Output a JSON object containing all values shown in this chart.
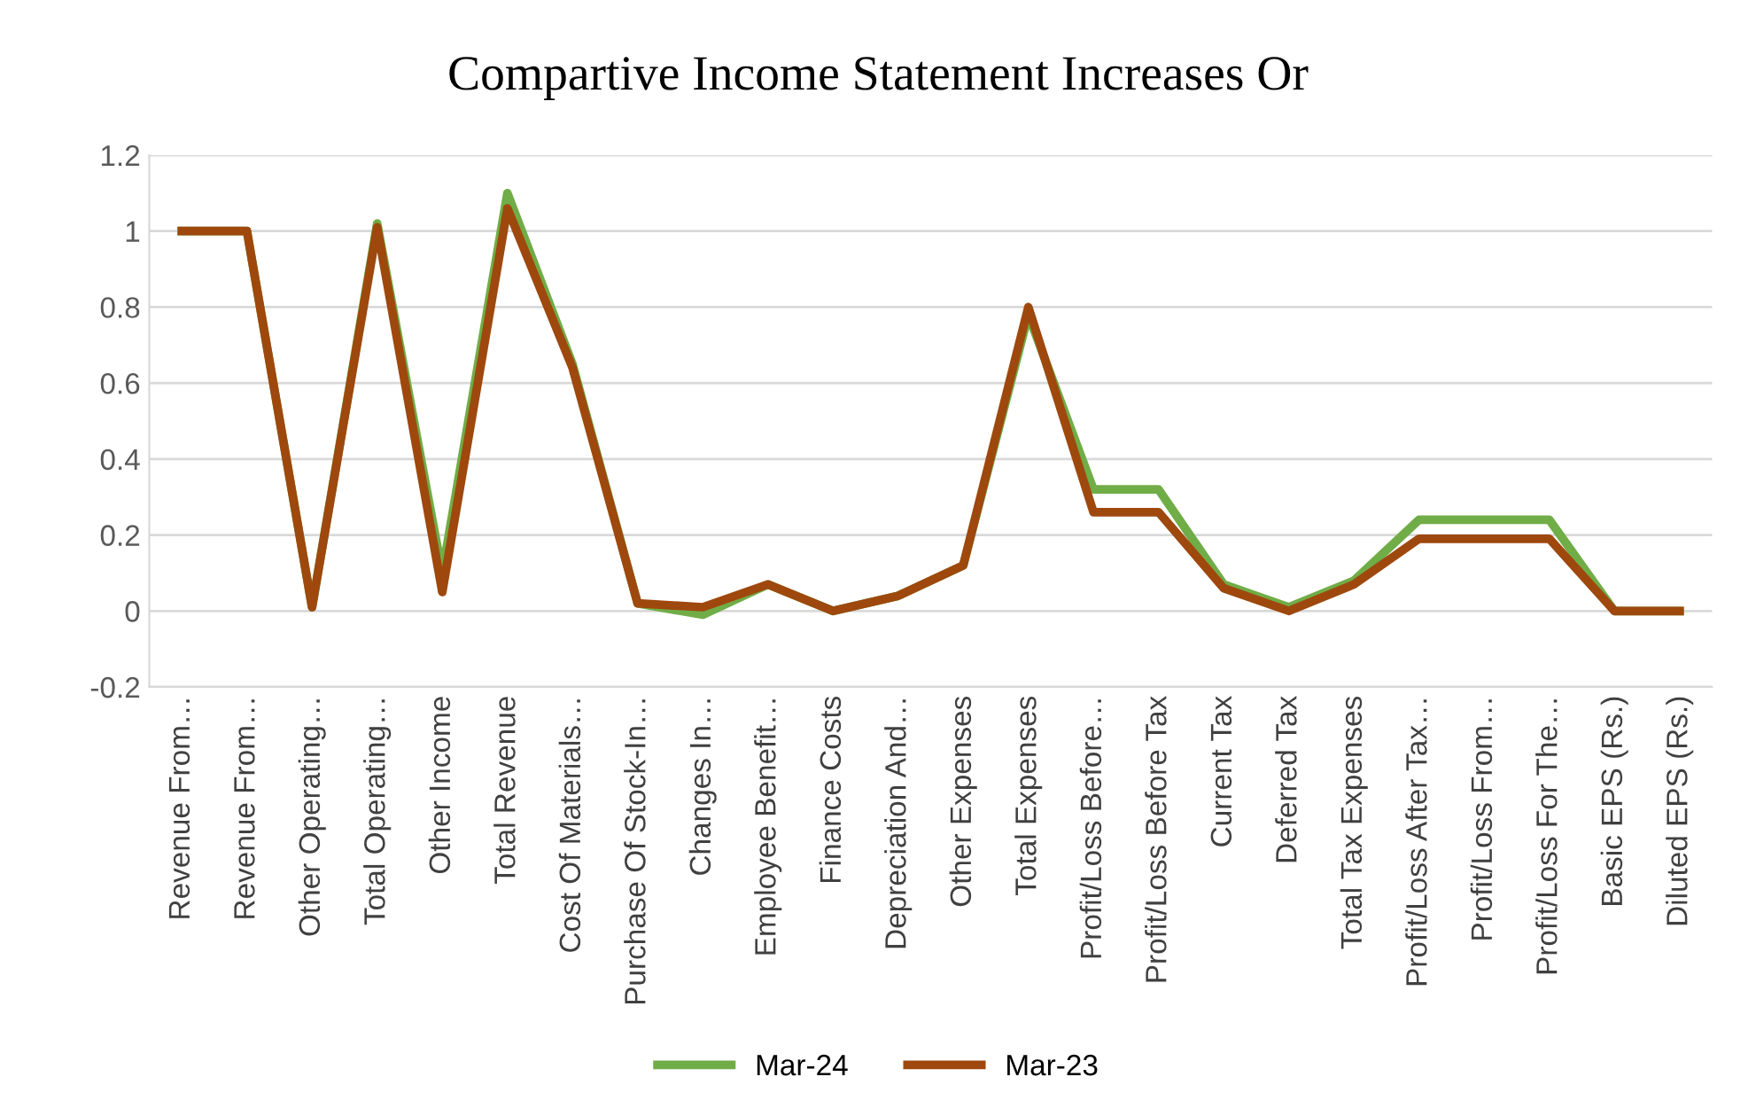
{
  "chart_data": {
    "type": "line",
    "title": "Compartive Income Statement Increases Or",
    "categories": [
      "Revenue From…",
      "Revenue From…",
      "Other Operating…",
      "Total Operating…",
      "Other Income",
      "Total Revenue",
      "Cost Of Materials…",
      "Purchase Of Stock-In…",
      "Changes In…",
      "Employee Benefit…",
      "Finance Costs",
      "Depreciation And…",
      "Other Expenses",
      "Total Expenses",
      "Profit/Loss Before…",
      "Profit/Loss Before Tax",
      "Current Tax",
      "Deferred Tax",
      "Total Tax Expenses",
      "Profit/Loss After Tax…",
      "Profit/Loss From…",
      "Profit/Loss For The…",
      "Basic EPS (Rs.)",
      "Diluted EPS (Rs.)"
    ],
    "series": [
      {
        "name": "Mar-24",
        "color": "#70ad47",
        "values": [
          1.0,
          1.0,
          0.01,
          1.02,
          0.1,
          1.1,
          0.65,
          0.02,
          -0.01,
          0.07,
          0.0,
          0.04,
          0.12,
          0.78,
          0.32,
          0.32,
          0.07,
          0.01,
          0.08,
          0.24,
          0.24,
          0.24,
          0.0,
          0.0
        ]
      },
      {
        "name": "Mar-23",
        "color": "#9e480e",
        "values": [
          1.0,
          1.0,
          0.01,
          1.01,
          0.05,
          1.06,
          0.64,
          0.02,
          0.01,
          0.07,
          0.0,
          0.04,
          0.12,
          0.8,
          0.26,
          0.26,
          0.06,
          0.0,
          0.07,
          0.19,
          0.19,
          0.19,
          0.0,
          0.0
        ]
      }
    ],
    "ylim": [
      -0.2,
      1.2
    ],
    "yticks": [
      -0.2,
      0,
      0.2,
      0.4,
      0.6,
      0.8,
      1,
      1.2
    ],
    "grid": "y",
    "legend": "bottom",
    "marker": "none",
    "line_style": "solid"
  }
}
